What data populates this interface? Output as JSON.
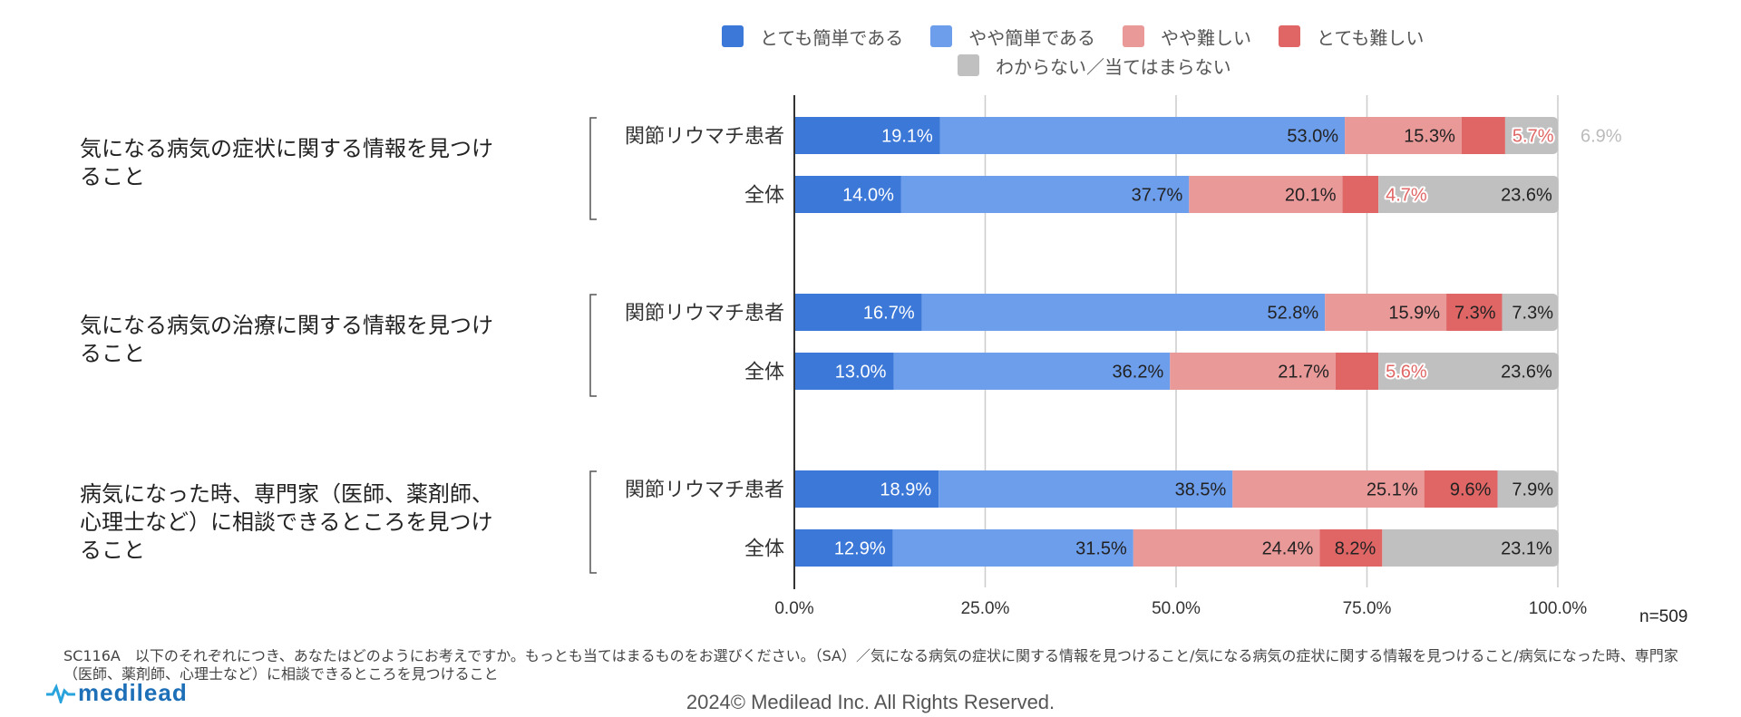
{
  "chart_data": {
    "type": "bar",
    "orientation": "horizontal",
    "stacked": "percent",
    "title": "",
    "xlabel": "",
    "ylabel": "",
    "xlim": [
      0,
      100
    ],
    "x_ticks": [
      "0.0%",
      "25.0%",
      "50.0%",
      "75.0%",
      "100.0%"
    ],
    "grid": true,
    "legend_position": "top",
    "sample_size_label": "n=509",
    "series": [
      {
        "name": "とても簡単である",
        "color": "#3c78d8"
      },
      {
        "name": "やや簡単である",
        "color": "#6d9eeb"
      },
      {
        "name": "やや難しい",
        "color": "#ea9999"
      },
      {
        "name": "とても難しい",
        "color": "#e06666"
      },
      {
        "name": "わからない／当てはまらない",
        "color": "#c0c0c0"
      }
    ],
    "groups": [
      {
        "label": "気になる病気の症状に関する情報を見つけること",
        "label_lines": [
          "気になる病気の症状に関する情報を見つけ",
          "ること"
        ],
        "bars": [
          {
            "label": "関節リウマチ患者",
            "values": [
              19.1,
              53.0,
              15.3,
              5.7,
              6.9
            ]
          },
          {
            "label": "全体",
            "values": [
              14.0,
              37.7,
              20.1,
              4.7,
              23.6
            ]
          }
        ]
      },
      {
        "label": "気になる病気の治療に関する情報を見つけること",
        "label_lines": [
          "気になる病気の治療に関する情報を見つけ",
          "ること"
        ],
        "bars": [
          {
            "label": "関節リウマチ患者",
            "values": [
              16.7,
              52.8,
              15.9,
              7.3,
              7.3
            ]
          },
          {
            "label": "全体",
            "values": [
              13.0,
              36.2,
              21.7,
              5.6,
              23.6
            ]
          }
        ]
      },
      {
        "label": "病気になった時、専門家（医師、薬剤師、心理士など）に相談できるところを見つけること",
        "label_lines": [
          "病気になった時、専門家（医師、薬剤師、",
          "心理士など）に相談できるところを見つけ",
          "ること"
        ],
        "bars": [
          {
            "label": "関節リウマチ患者",
            "values": [
              18.9,
              38.5,
              25.1,
              9.6,
              7.9
            ]
          },
          {
            "label": "全体",
            "values": [
              12.9,
              31.5,
              24.4,
              8.2,
              23.1
            ]
          }
        ]
      }
    ]
  },
  "footer": {
    "footnote": "SC116A　以下のそれぞれにつき、あなたはどのようにお考えですか。もっとも当てはまるものをお選びください。（SA）／気になる病気の症状に関する情報を見つけること/気になる病気の症状に関する情報を見つけること/病気になった時、専門家（医師、薬剤師、心理士など）に相談できるところを見つけること",
    "copyright": "2024© Medilead Inc. All Rights Reserved.",
    "logo_text": "medilead"
  }
}
